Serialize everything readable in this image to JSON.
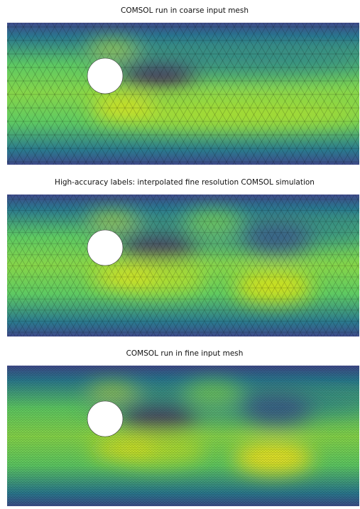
{
  "panels": [
    {
      "title": "COMSOL run in coarse input mesh"
    },
    {
      "title": "High-accuracy labels: interpolated fine resolution COMSOL simulation"
    },
    {
      "title": "COMSOL run in fine input mesh"
    }
  ]
}
